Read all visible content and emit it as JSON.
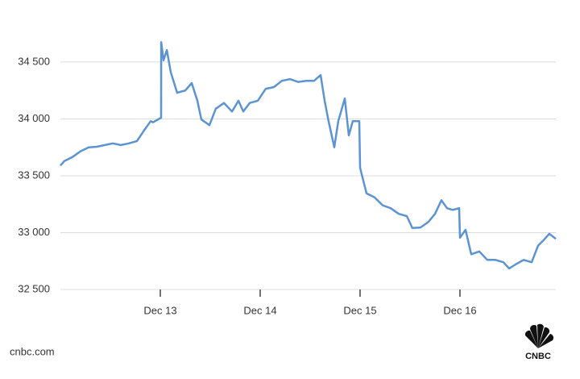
{
  "chart_data": {
    "type": "line",
    "x": [
      12.0,
      12.04,
      12.121,
      12.202,
      12.282,
      12.363,
      12.444,
      12.524,
      12.605,
      12.685,
      12.766,
      12.847,
      12.903,
      12.927,
      13.008,
      13.009,
      13.032,
      13.065,
      13.105,
      13.169,
      13.25,
      13.315,
      13.371,
      13.411,
      13.492,
      13.556,
      13.637,
      13.718,
      13.782,
      13.831,
      13.895,
      13.976,
      14.056,
      14.137,
      14.218,
      14.298,
      14.379,
      14.46,
      14.54,
      14.605,
      14.645,
      14.685,
      14.742,
      14.782,
      14.847,
      14.887,
      14.927,
      14.992,
      15.0,
      15.065,
      15.145,
      15.226,
      15.306,
      15.387,
      15.468,
      15.524,
      15.605,
      15.685,
      15.75,
      15.815,
      15.871,
      15.927,
      15.992,
      16.0,
      16.056,
      16.113,
      16.194,
      16.274,
      16.355,
      16.435,
      16.492,
      16.556,
      16.637,
      16.718,
      16.782,
      16.839,
      16.895,
      16.96
    ],
    "series": [
      {
        "color": "#5b93d3",
        "values": [
          33590,
          33630,
          33665,
          33715,
          33750,
          33755,
          33770,
          33785,
          33770,
          33785,
          33805,
          33910,
          33980,
          33970,
          34010,
          34675,
          34515,
          34605,
          34410,
          34230,
          34250,
          34315,
          34160,
          33995,
          33945,
          34090,
          34140,
          34065,
          34160,
          34065,
          34140,
          34160,
          34265,
          34280,
          34335,
          34350,
          34325,
          34335,
          34335,
          34385,
          34160,
          33980,
          33750,
          33980,
          34180,
          33855,
          33980,
          33980,
          33570,
          33345,
          33310,
          33240,
          33215,
          33165,
          33145,
          33040,
          33045,
          33095,
          33165,
          33285,
          33215,
          33200,
          33215,
          32955,
          33025,
          32810,
          32835,
          32760,
          32760,
          32740,
          32685,
          32720,
          32760,
          32740,
          32885,
          32935,
          32990,
          32945
        ]
      }
    ],
    "xlim": [
      12,
      16.96
    ],
    "xticks": [
      {
        "value": 13,
        "label": "Dec 13"
      },
      {
        "value": 14,
        "label": "Dec 14"
      },
      {
        "value": 15,
        "label": "Dec 15"
      },
      {
        "value": 16,
        "label": "Dec 16"
      }
    ],
    "ylim": [
      32500,
      35010
    ],
    "yticks": [
      {
        "value": 32500,
        "label": "32 500"
      },
      {
        "value": 33000,
        "label": "33 000"
      },
      {
        "value": 33500,
        "label": "33 500"
      },
      {
        "value": 34000,
        "label": "34 000"
      },
      {
        "value": 34500,
        "label": "34 500"
      }
    ],
    "grid": true,
    "source": "cnbc.com",
    "logo_text": "CNBC"
  }
}
